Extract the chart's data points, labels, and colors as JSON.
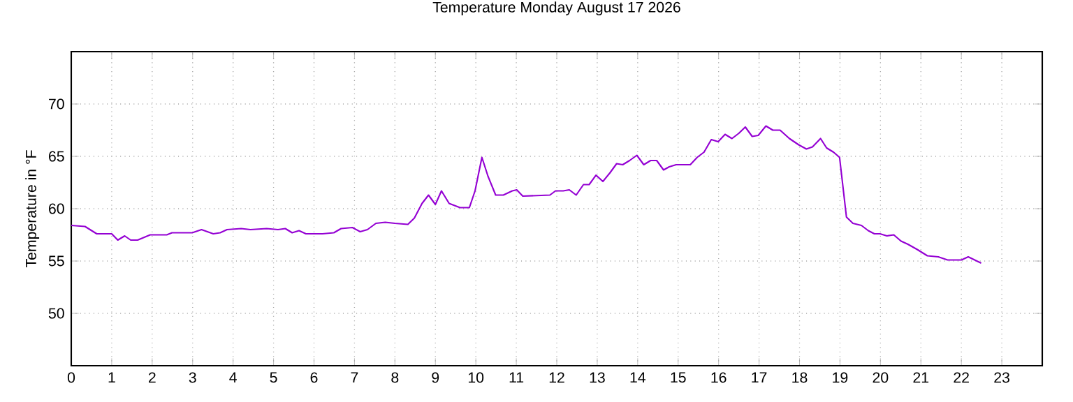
{
  "chart_data": {
    "type": "line",
    "title": "Temperature Monday August 17 2026",
    "ylabel": "Temperature in °F",
    "xlim": [
      0,
      24
    ],
    "xticks": [
      0,
      1,
      2,
      3,
      4,
      5,
      6,
      7,
      8,
      9,
      10,
      11,
      12,
      13,
      14,
      15,
      16,
      17,
      18,
      19,
      20,
      21,
      22,
      23
    ],
    "ylim": [
      45,
      75
    ],
    "yticks": [
      50,
      55,
      60,
      65,
      70
    ],
    "grid": true,
    "marker": "none",
    "line_style": "solid",
    "series": [
      {
        "color": "#9400d3",
        "x": [
          0,
          0.34,
          0.63,
          1.0,
          1.15,
          1.32,
          1.47,
          1.64,
          1.95,
          2.18,
          2.36,
          2.49,
          2.99,
          3.22,
          3.51,
          3.68,
          3.85,
          4.2,
          4.43,
          4.83,
          5.11,
          5.29,
          5.46,
          5.63,
          5.8,
          6.21,
          6.49,
          6.67,
          6.95,
          7.14,
          7.32,
          7.53,
          7.76,
          8.0,
          8.32,
          8.48,
          8.67,
          8.83,
          9.0,
          9.15,
          9.34,
          9.61,
          9.84,
          9.98,
          10.15,
          10.3,
          10.49,
          10.68,
          10.9,
          11.01,
          11.16,
          11.83,
          11.97,
          12.16,
          12.31,
          12.48,
          12.66,
          12.8,
          12.97,
          13.14,
          13.31,
          13.48,
          13.63,
          13.8,
          13.98,
          14.15,
          14.32,
          14.47,
          14.64,
          14.78,
          14.95,
          15.3,
          15.47,
          15.64,
          15.82,
          15.99,
          16.16,
          16.33,
          16.5,
          16.66,
          16.83,
          16.98,
          17.17,
          17.34,
          17.52,
          17.75,
          17.98,
          18.17,
          18.32,
          18.52,
          18.67,
          18.84,
          18.99,
          19.16,
          19.32,
          19.53,
          19.7,
          19.85,
          19.99,
          20.16,
          20.33,
          20.51,
          20.68,
          20.91,
          21.16,
          21.43,
          21.66,
          22.0,
          22.17,
          22.49
        ],
        "values": [
          58.4,
          58.3,
          57.6,
          57.6,
          57.0,
          57.4,
          57.0,
          57.0,
          57.5,
          57.5,
          57.5,
          57.7,
          57.7,
          58.0,
          57.6,
          57.7,
          58.0,
          58.1,
          58.0,
          58.1,
          58.0,
          58.1,
          57.7,
          57.9,
          57.6,
          57.6,
          57.7,
          58.1,
          58.2,
          57.8,
          58.0,
          58.6,
          58.7,
          58.6,
          58.5,
          59.1,
          60.5,
          61.3,
          60.4,
          61.7,
          60.5,
          60.1,
          60.1,
          61.7,
          64.9,
          63.1,
          61.3,
          61.3,
          61.7,
          61.8,
          61.2,
          61.3,
          61.7,
          61.7,
          61.8,
          61.3,
          62.3,
          62.3,
          63.2,
          62.6,
          63.4,
          64.3,
          64.2,
          64.6,
          65.1,
          64.2,
          64.6,
          64.6,
          63.7,
          64.0,
          64.2,
          64.2,
          64.9,
          65.4,
          66.6,
          66.4,
          67.1,
          66.7,
          67.2,
          67.8,
          66.9,
          67.0,
          67.9,
          67.5,
          67.5,
          66.7,
          66.1,
          65.7,
          65.9,
          66.7,
          65.8,
          65.4,
          64.9,
          59.2,
          58.6,
          58.4,
          57.9,
          57.6,
          57.6,
          57.4,
          57.5,
          56.9,
          56.6,
          56.1,
          55.5,
          55.4,
          55.1,
          55.1,
          55.4,
          54.8
        ]
      }
    ]
  }
}
